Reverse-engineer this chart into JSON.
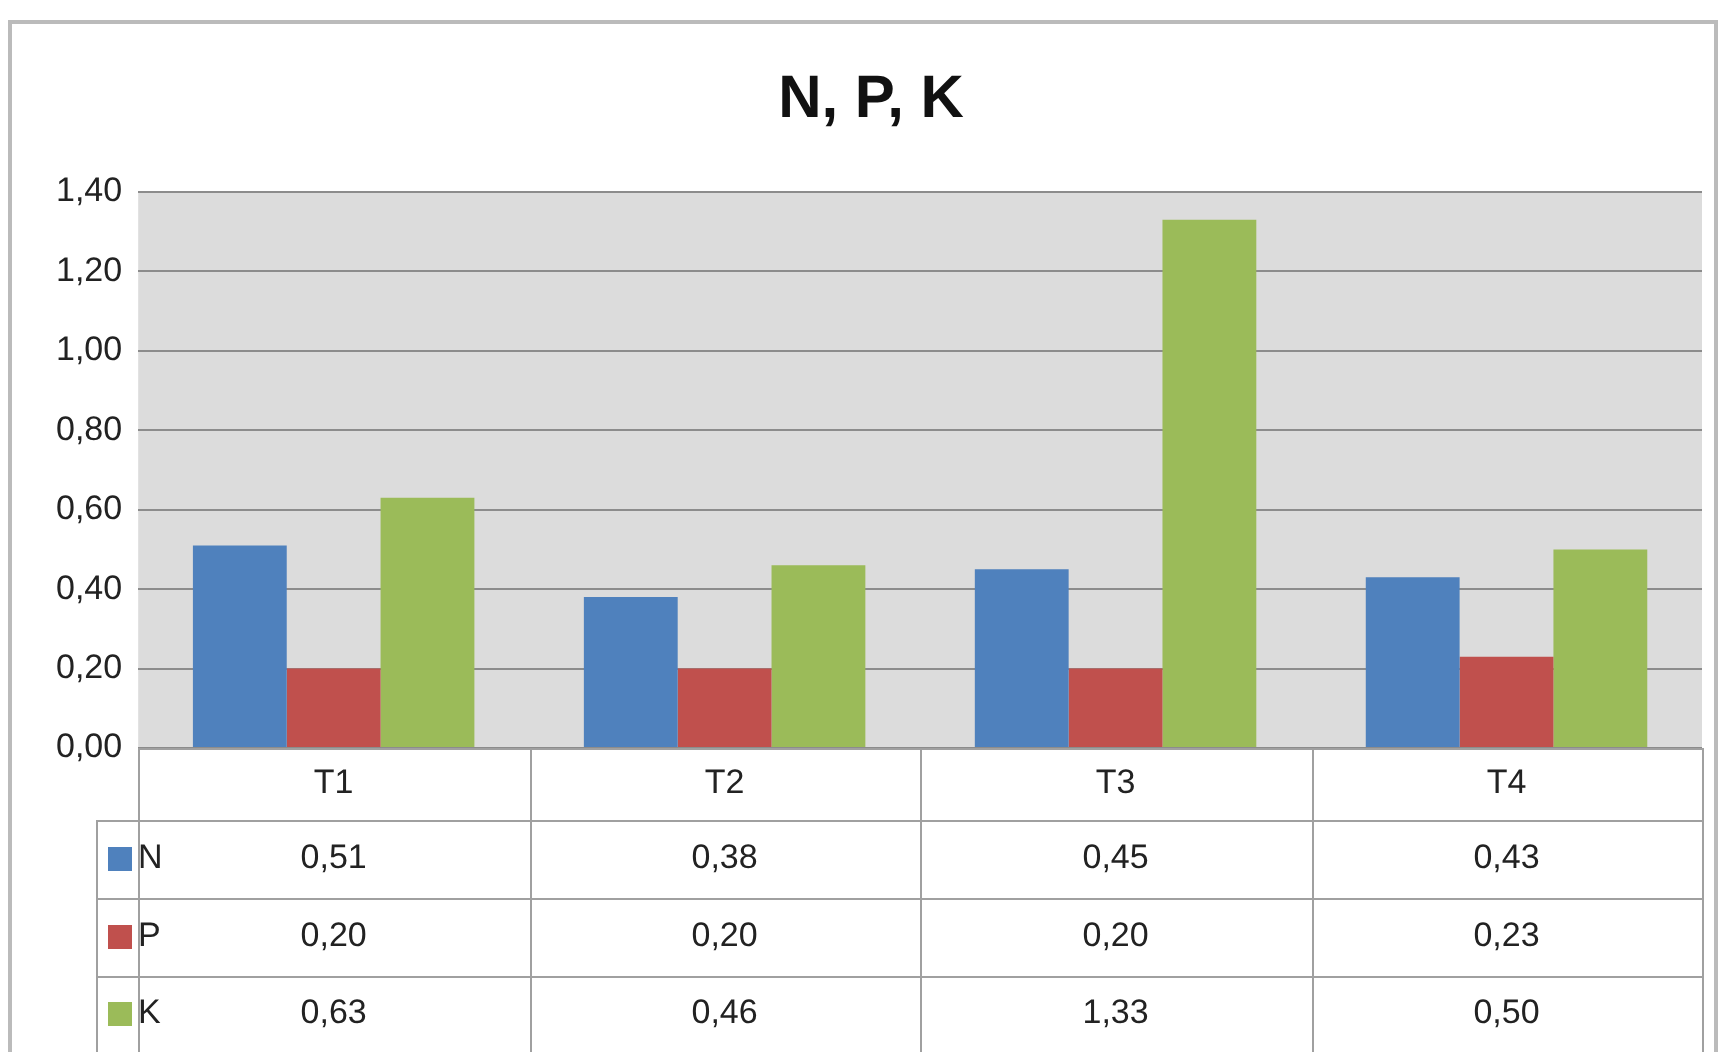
{
  "chart_data": {
    "type": "bar",
    "title": "N, P, K",
    "categories": [
      "T1",
      "T2",
      "T3",
      "T4"
    ],
    "series": [
      {
        "name": "N",
        "color": "#4f81bd",
        "values": [
          0.51,
          0.38,
          0.45,
          0.43
        ],
        "value_labels": [
          "0,51",
          "0,38",
          "0,45",
          "0,43"
        ]
      },
      {
        "name": "P",
        "color": "#c0504d",
        "values": [
          0.2,
          0.2,
          0.2,
          0.23
        ],
        "value_labels": [
          "0,20",
          "0,20",
          "0,20",
          "0,23"
        ]
      },
      {
        "name": "K",
        "color": "#9bbb59",
        "values": [
          0.63,
          0.46,
          1.33,
          0.5
        ],
        "value_labels": [
          "0,63",
          "0,46",
          "1,33",
          "0,50"
        ]
      }
    ],
    "ylim": [
      0,
      1.4
    ],
    "yticks": [
      {
        "value": 0,
        "label": "0,00"
      },
      {
        "value": 0.2,
        "label": "0,20"
      },
      {
        "value": 0.4,
        "label": "0,40"
      },
      {
        "value": 0.6,
        "label": "0,60"
      },
      {
        "value": 0.8,
        "label": "0,80"
      },
      {
        "value": 1.0,
        "label": "1,00"
      },
      {
        "value": 1.2,
        "label": "1,20"
      },
      {
        "value": 1.4,
        "label": "1,40"
      }
    ],
    "grid": "y",
    "legend": "bottom"
  }
}
